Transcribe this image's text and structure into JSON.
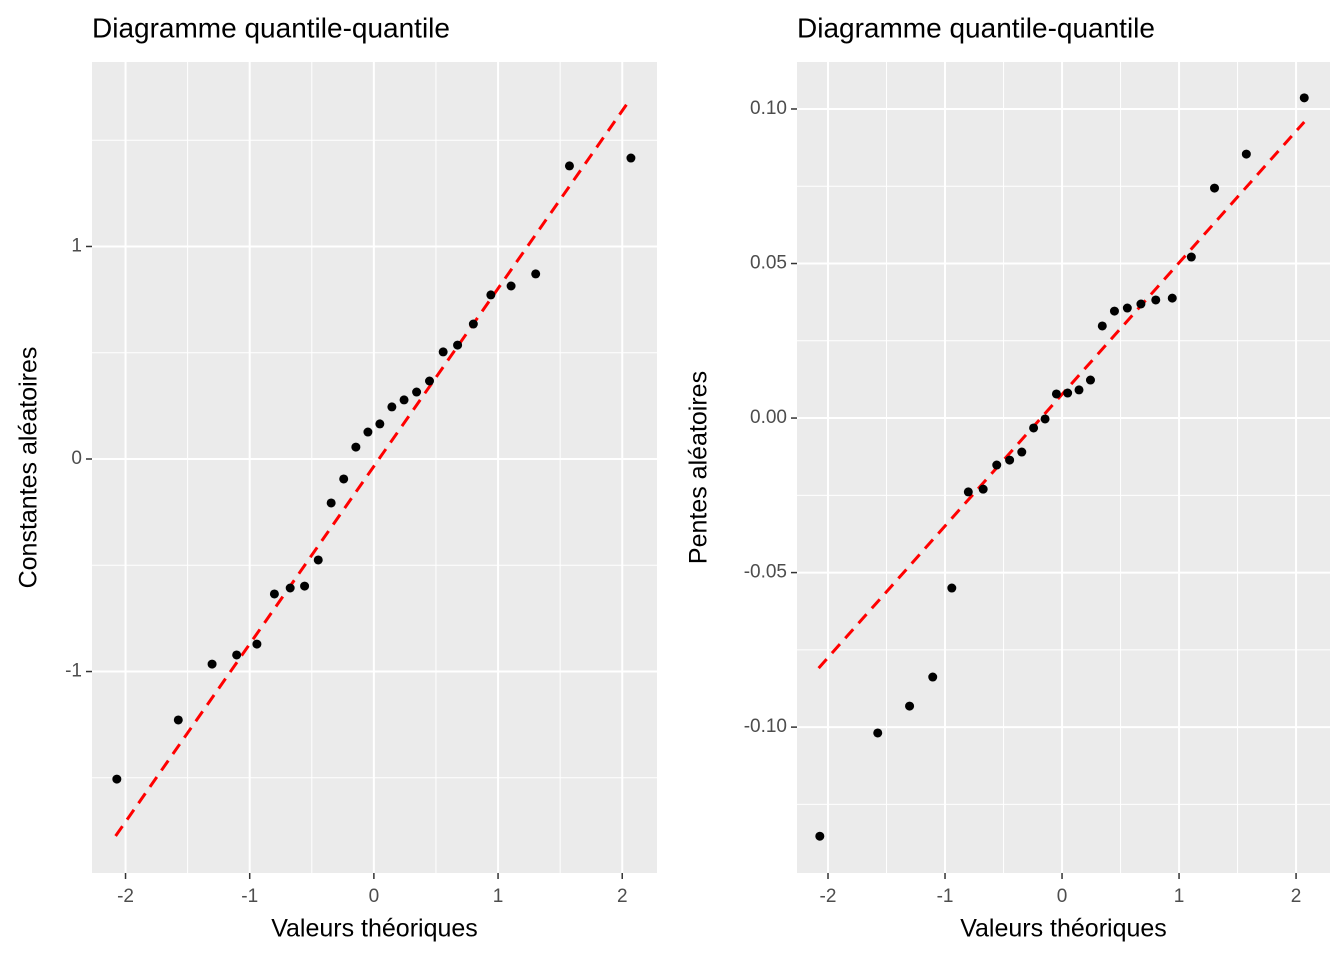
{
  "chart_data": [
    {
      "type": "scatter",
      "title": "Diagramme quantile-quantile",
      "x_label": "Valeurs théoriques",
      "y_label": "Constantes aléatoires",
      "x": [
        -2.07,
        -1.575,
        -1.303,
        -1.105,
        -0.942,
        -0.801,
        -0.674,
        -0.558,
        -0.448,
        -0.344,
        -0.243,
        -0.145,
        -0.048,
        0.048,
        0.145,
        0.243,
        0.344,
        0.448,
        0.558,
        0.674,
        0.801,
        0.942,
        1.105,
        1.303,
        1.575,
        2.07
      ],
      "values": [
        -1.506,
        -1.228,
        -0.965,
        -0.922,
        -0.871,
        -0.635,
        -0.607,
        -0.598,
        -0.475,
        -0.207,
        -0.094,
        0.056,
        0.127,
        0.165,
        0.245,
        0.278,
        0.315,
        0.367,
        0.504,
        0.536,
        0.635,
        0.772,
        0.814,
        0.871,
        1.379,
        1.416
      ],
      "color": "#000000",
      "qq_line": {
        "x": [
          -2.08,
          2.06
        ],
        "values": [
          -1.774,
          1.689
        ],
        "color": "#ff0000"
      },
      "xlim": [
        -2.27,
        2.28
      ],
      "xticks": [
        -2,
        -1,
        0,
        1,
        2
      ],
      "ylim": [
        -1.948,
        1.868
      ],
      "yticks": [
        -1,
        0,
        1
      ],
      "grid": true,
      "minor_grid": true
    },
    {
      "type": "scatter",
      "title": "Diagramme quantile-quantile",
      "x_label": "Valeurs théoriques",
      "y_label": "Pentes aléatoires",
      "x": [
        -2.07,
        -1.575,
        -1.303,
        -1.105,
        -0.942,
        -0.801,
        -0.674,
        -0.558,
        -0.448,
        -0.344,
        -0.243,
        -0.145,
        -0.048,
        0.048,
        0.145,
        0.243,
        0.344,
        0.448,
        0.558,
        0.674,
        0.801,
        0.942,
        1.105,
        1.303,
        1.575,
        2.07
      ],
      "values": [
        -0.1353,
        -0.1019,
        -0.0932,
        -0.0838,
        -0.055,
        -0.0239,
        -0.023,
        -0.0152,
        -0.0136,
        -0.011,
        -0.0032,
        -0.0003,
        0.0078,
        0.0081,
        0.0091,
        0.0123,
        0.0298,
        0.0346,
        0.0356,
        0.0369,
        0.0382,
        0.0388,
        0.0521,
        0.0744,
        0.0854,
        0.1036
      ],
      "color": "#000000",
      "qq_line": {
        "x": [
          -2.08,
          2.07
        ],
        "values": [
          -0.0809,
          0.0958
        ],
        "color": "#ff0000"
      },
      "xlim": [
        -2.265,
        2.29
      ],
      "xticks": [
        -2,
        -1,
        0,
        1,
        2
      ],
      "ylim": [
        -0.1472,
        0.1152
      ],
      "yticks": [
        {
          "value": -0.1,
          "label": "-0.10"
        },
        -0.05,
        {
          "value": 0,
          "label": "0.00"
        },
        0.05,
        {
          "value": 0.1,
          "label": "0.10"
        }
      ],
      "grid": true,
      "minor_grid": true
    }
  ]
}
